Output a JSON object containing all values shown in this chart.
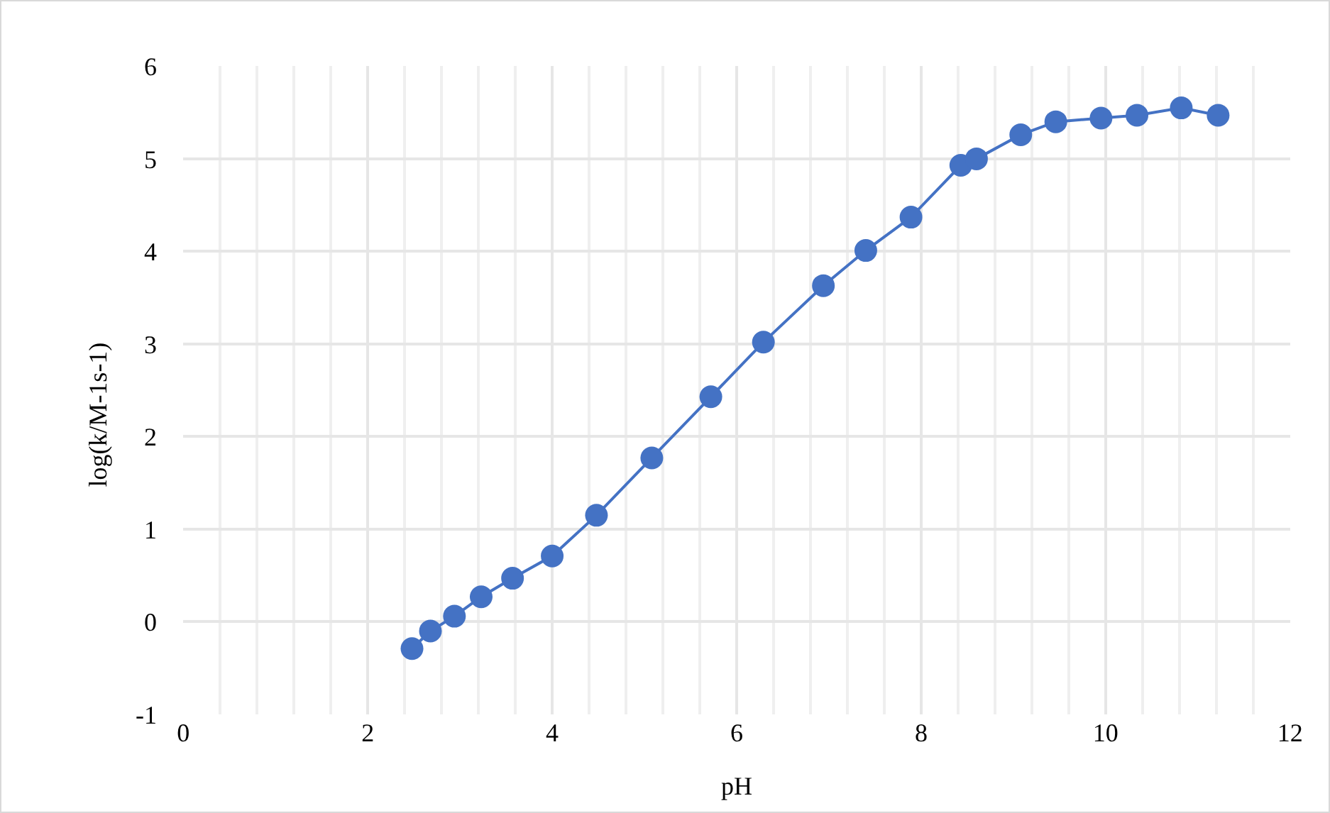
{
  "chart_data": {
    "type": "line",
    "xlabel": "pH",
    "ylabel": "log(k/M-1s-1)",
    "series": [
      {
        "color": "#4472c4",
        "x": [
          2.48,
          2.68,
          2.94,
          3.23,
          3.57,
          4.0,
          4.48,
          5.08,
          5.72,
          6.29,
          6.94,
          7.4,
          7.89,
          8.43,
          8.6,
          9.08,
          9.46,
          9.95,
          10.34,
          10.82,
          11.22
        ],
        "values": [
          -0.29,
          -0.1,
          0.06,
          0.27,
          0.47,
          0.71,
          1.15,
          1.77,
          2.43,
          3.02,
          3.63,
          4.01,
          4.37,
          4.93,
          5.0,
          5.26,
          5.4,
          5.44,
          5.47,
          5.55,
          5.47
        ]
      }
    ],
    "xlim": [
      0,
      12
    ],
    "xticks": [
      0,
      2,
      4,
      6,
      8,
      10,
      12
    ],
    "ylim": [
      -1,
      6
    ],
    "yticks": [
      -1,
      0,
      1,
      2,
      3,
      4,
      5,
      6
    ],
    "grid": true,
    "marker": "circle",
    "line_style": "solid"
  }
}
